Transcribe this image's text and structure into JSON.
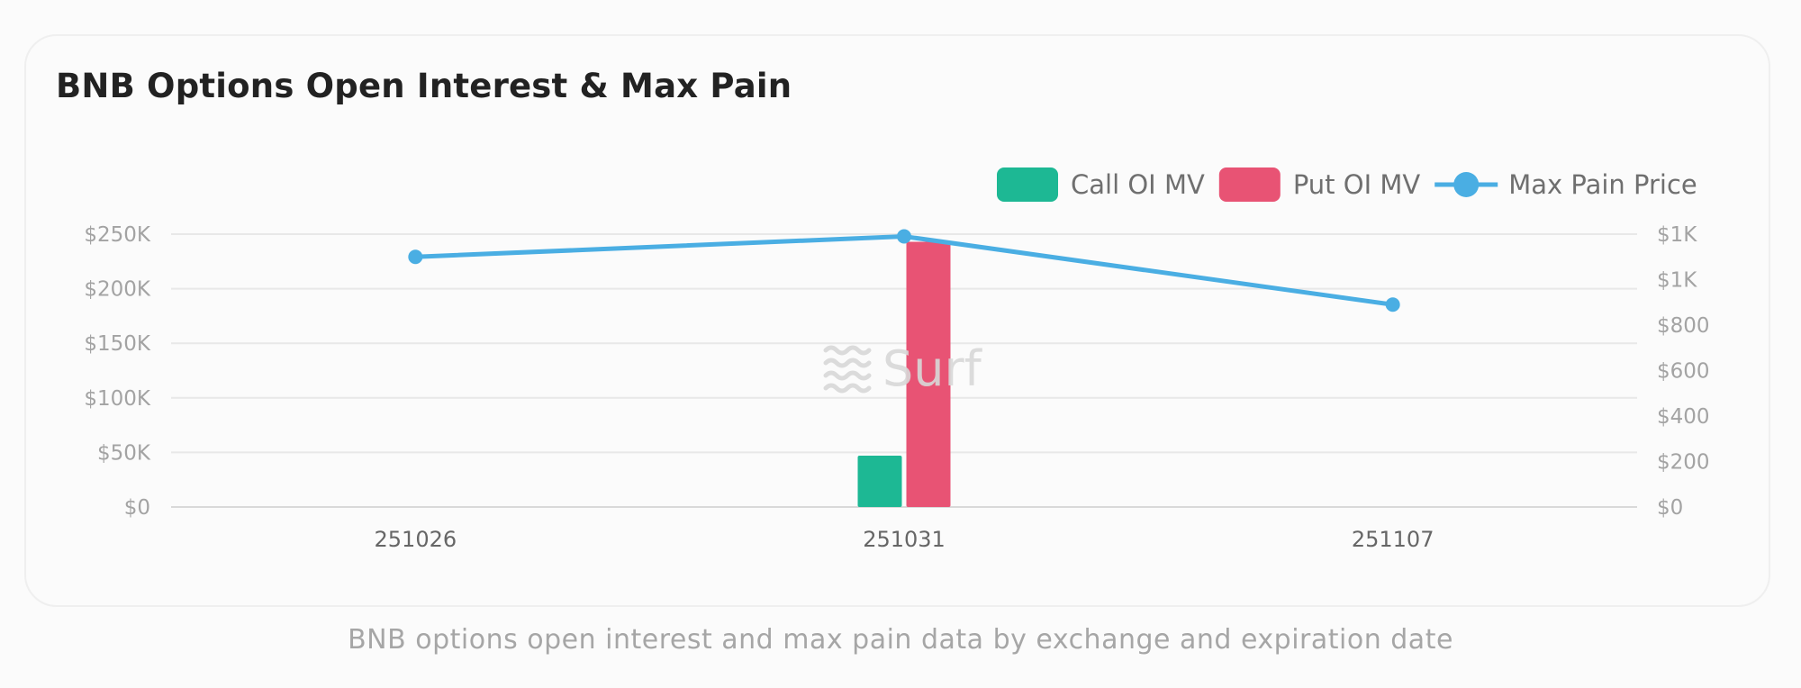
{
  "title": "BNB Options Open Interest & Max Pain",
  "caption": "BNB options open interest and max pain data by exchange and expiration date",
  "watermark": "Surf",
  "colors": {
    "call": "#1db894",
    "put": "#e85374",
    "max_pain": "#4aaee3",
    "grid": "#e8e8e8",
    "axis": "#d9d9d9"
  },
  "chart_data": {
    "type": "bar",
    "title": "BNB Options Open Interest & Max Pain",
    "categories": [
      "251026",
      "251031",
      "251107"
    ],
    "series": [
      {
        "name": "Call OI MV",
        "type": "bar",
        "axis": "left",
        "values": [
          0,
          47000,
          0
        ]
      },
      {
        "name": "Put OI MV",
        "type": "bar",
        "axis": "left",
        "values": [
          0,
          243000,
          0
        ]
      },
      {
        "name": "Max Pain Price",
        "type": "line",
        "axis": "right",
        "values": [
          1100,
          1190,
          890
        ]
      }
    ],
    "y_left": {
      "range": [
        0,
        250000
      ],
      "ticks": [
        0,
        50000,
        100000,
        150000,
        200000,
        250000
      ],
      "tick_labels": [
        "$0",
        "$50K",
        "$100K",
        "$150K",
        "$200K",
        "$250K"
      ]
    },
    "y_right": {
      "range": [
        0,
        1200
      ],
      "ticks": [
        0,
        200,
        400,
        600,
        800,
        1000,
        1200
      ],
      "tick_labels": [
        "$0",
        "$200",
        "$400",
        "$600",
        "$800",
        "$1K",
        "$1K"
      ]
    },
    "legend_position": "top-right",
    "grid": true
  }
}
